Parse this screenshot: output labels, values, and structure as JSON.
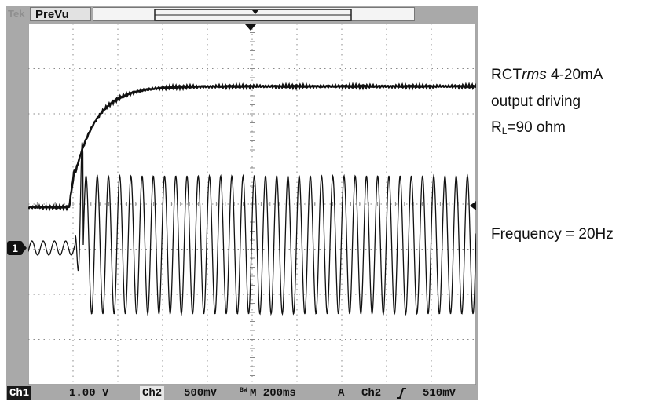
{
  "scope": {
    "brand": "Tek",
    "mode": "PreVu",
    "status": {
      "ch1_label": "Ch1",
      "ch1_scale": "1.00 V",
      "ch2_label": "Ch2",
      "ch2_scale": "500mV",
      "bw_mark": "BW",
      "timebase": "M 200ms",
      "trigger_mode": "A",
      "trigger_source": "Ch2",
      "trigger_slope": "rising-edge-icon",
      "trigger_level": "510mV"
    },
    "ch1_marker": "1"
  },
  "annotations": {
    "line1_prefix": "RCT",
    "line1_italic": "rms",
    "line1_suffix": " 4-20mA",
    "line2": "output driving",
    "line3_prefix": "R",
    "line3_sub": "L",
    "line3_suffix": "=90 ohm",
    "frequency": "Frequency = 20Hz"
  },
  "colors": {
    "bezel": "#a9a9a9",
    "trace": "#111111",
    "grid": "#8a8a8a"
  }
}
